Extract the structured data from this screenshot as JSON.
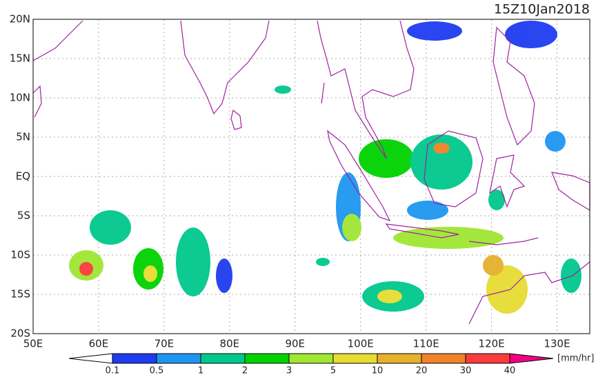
{
  "map": {
    "title": "15Z10Jan2018",
    "lat_labels": [
      "20N",
      "15N",
      "10N",
      "5N",
      "EQ",
      "5S",
      "10S",
      "15S",
      "20S"
    ],
    "lon_labels": [
      "50E",
      "60E",
      "70E",
      "80E",
      "90E",
      "100E",
      "110E",
      "120E",
      "130E"
    ],
    "colorbar": {
      "labels": [
        0.1,
        0.5,
        1,
        2,
        3,
        5,
        10,
        20,
        30,
        40
      ],
      "colors": [
        "#ffffff",
        "#1e3cf0",
        "#1e96f0",
        "#00c88c",
        "#00d200",
        "#a0e632",
        "#e6dc32",
        "#e6af2d",
        "#f08228",
        "#fa3c3c",
        "#f00082"
      ],
      "unit": "[mm/hr]"
    }
  }
}
